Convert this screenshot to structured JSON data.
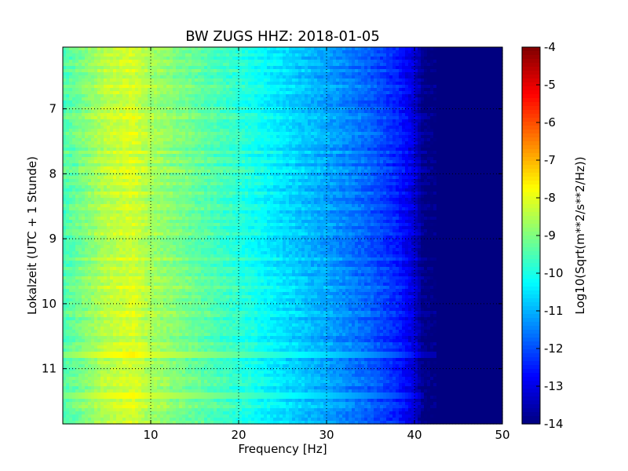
{
  "chart_data": {
    "type": "heatmap",
    "title": "BW ZUGS HHZ: 2018-01-05",
    "xlabel": "Frequency [Hz]",
    "ylabel": "Lokalzeit (UTC + 1 Stunde)",
    "colorbar_label": "Log10(Sqrt(m**2/s**2/Hz))",
    "xlim": [
      0,
      50
    ],
    "ylim": [
      11.85,
      6.05
    ],
    "y_axis_inverted": true,
    "clim": [
      -14,
      -4
    ],
    "colormap": "jet",
    "grid": true,
    "x_ticks": [
      "10",
      "20",
      "30",
      "40",
      "50"
    ],
    "y_ticks": [
      "7",
      "8",
      "9",
      "10",
      "11"
    ],
    "colorbar_ticks": [
      "-4",
      "-5",
      "-6",
      "-7",
      "-8",
      "-9",
      "-10",
      "-11",
      "-12",
      "-13",
      "-14"
    ],
    "frequency_profile": {
      "frequency_hz": [
        0,
        5,
        8,
        10,
        15,
        20,
        25,
        30,
        35,
        38,
        40,
        41,
        42,
        50
      ],
      "log10_psd": [
        -9.5,
        -8.4,
        -8.1,
        -8.6,
        -9.2,
        -9.8,
        -10.5,
        -11.1,
        -11.8,
        -12.4,
        -13.1,
        -13.9,
        -14,
        -14
      ]
    },
    "highlighted_hours": [
      {
        "hour": 10.78,
        "peak_log10_psd": -7.6,
        "max_frequency_hz": 43
      },
      {
        "hour": 11.15,
        "peak_log10_psd": -8.1,
        "max_frequency_hz": 42
      },
      {
        "hour": 11.42,
        "peak_log10_psd": -7.7,
        "max_frequency_hz": 41
      },
      {
        "hour": 8.78,
        "peak_log10_psd": -8.6,
        "max_frequency_hz": 42
      },
      {
        "hour": 8.15,
        "peak_log10_psd": -8.9,
        "max_frequency_hz": 41
      },
      {
        "hour": 7.35,
        "peak_log10_psd": -9.1,
        "max_frequency_hz": 40
      }
    ]
  }
}
